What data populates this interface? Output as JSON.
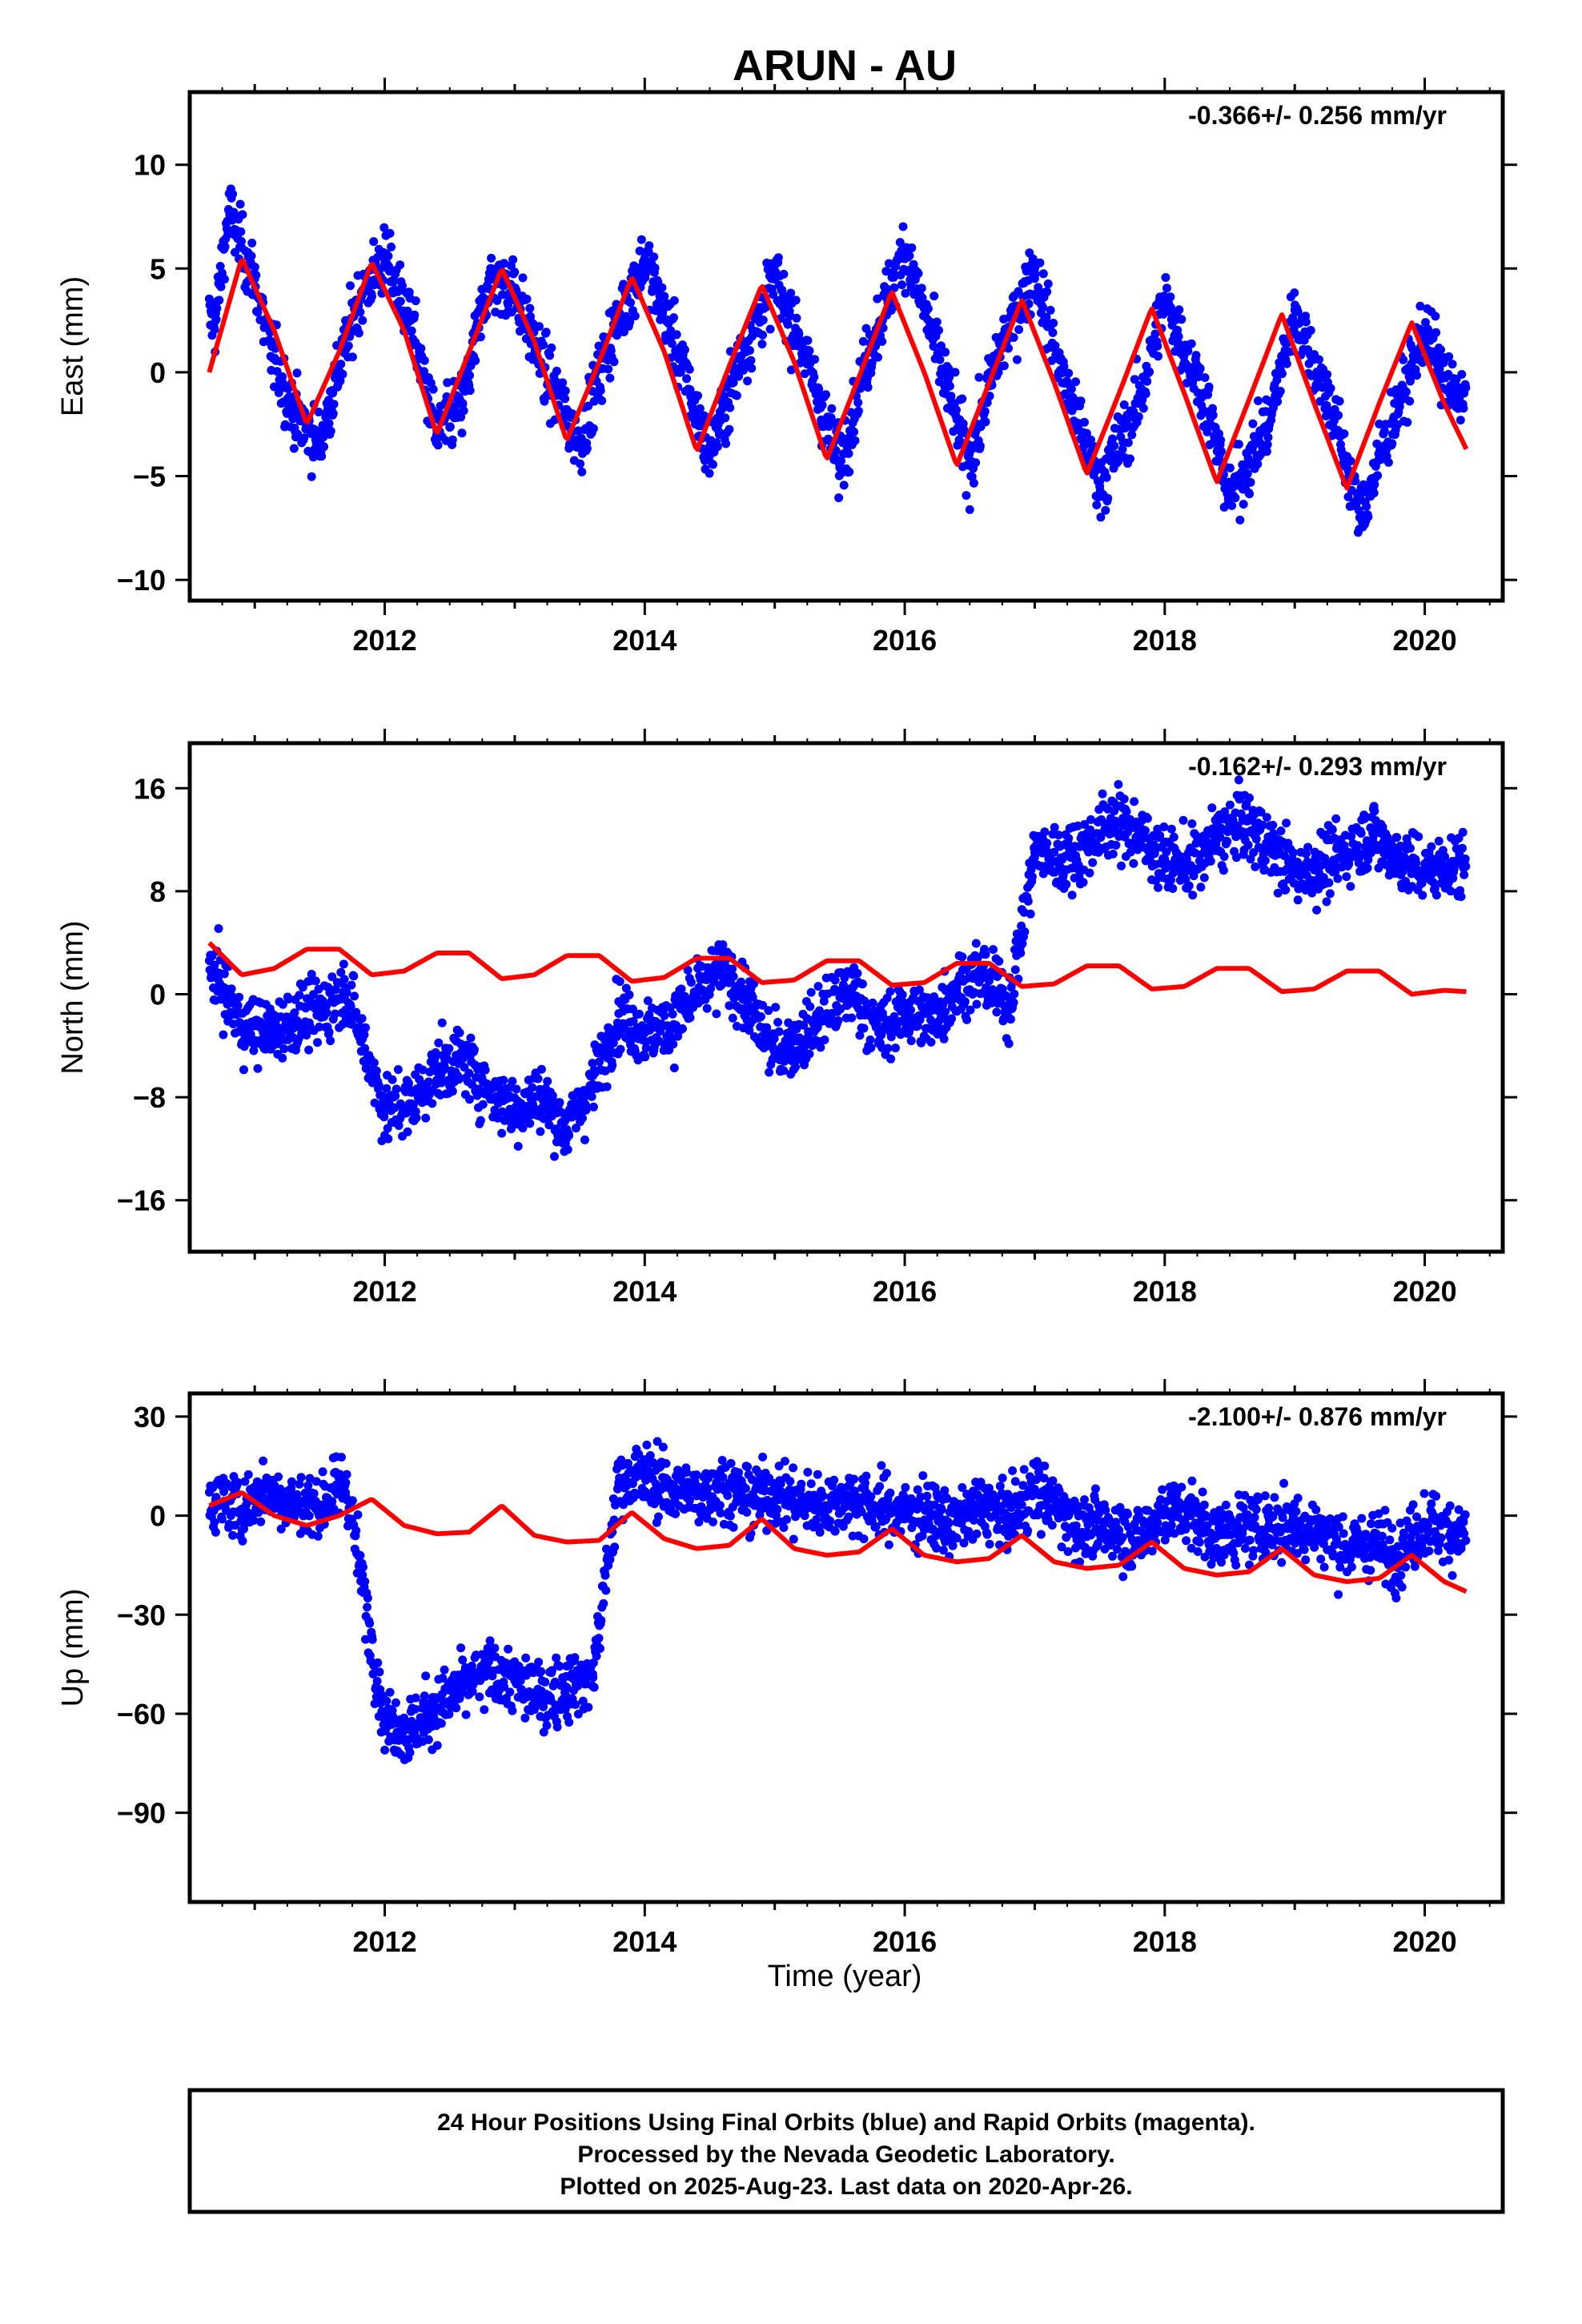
{
  "chart_data": {
    "type": "scatter",
    "title": "ARUN - AU",
    "xlabel": "Time (year)",
    "xlim": [
      2010.5,
      2020.6
    ],
    "xticks": [
      2012,
      2014,
      2016,
      2018,
      2020
    ],
    "colors": {
      "final_orbits": "#0000ff",
      "model": "#ff0000"
    },
    "panels": [
      {
        "ylabel": "East (mm)",
        "ylim": [
          -11,
          13.5
        ],
        "yticks": [
          10,
          5,
          0,
          -5,
          -10
        ],
        "rate": "-0.366+/- 0.256 mm/yr",
        "data_start": 2010.65,
        "data_end": 2020.32,
        "series": [
          {
            "name": "model",
            "style": "line",
            "x": [
              2010.65,
              2010.9,
              2011.15,
              2011.4,
              2011.65,
              2011.9,
              2012.15,
              2012.4,
              2012.65,
              2012.9,
              2013.15,
              2013.4,
              2013.65,
              2013.9,
              2014.15,
              2014.4,
              2014.65,
              2014.9,
              2015.15,
              2015.4,
              2015.65,
              2015.9,
              2016.15,
              2016.4,
              2016.65,
              2016.9,
              2017.15,
              2017.4,
              2017.65,
              2017.9,
              2018.15,
              2018.4,
              2018.65,
              2018.9,
              2019.15,
              2019.4,
              2019.65,
              2019.9,
              2020.15,
              2020.32
            ],
            "y": [
              0.0,
              5.5,
              2.0,
              -2.5,
              1.0,
              5.3,
              2.0,
              -3.0,
              1.0,
              5.0,
              1.5,
              -3.3,
              0.5,
              4.6,
              1.0,
              -3.8,
              0.3,
              4.2,
              0.5,
              -4.2,
              -0.2,
              3.9,
              0.0,
              -4.5,
              -0.5,
              3.5,
              -0.5,
              -4.9,
              -1.0,
              3.1,
              -1.0,
              -5.3,
              -1.3,
              2.8,
              -1.5,
              -5.6,
              -1.5,
              2.4,
              -1.5,
              -3.7
            ]
          },
          {
            "name": "final orbits",
            "style": "points",
            "x": [
              2010.7,
              2010.8,
              2010.9,
              2011.0,
              2011.1,
              2011.3,
              2011.5,
              2011.6,
              2011.8,
              2012.0,
              2012.2,
              2012.4,
              2012.6,
              2012.8,
              2013.0,
              2013.2,
              2013.5,
              2013.7,
              2014.0,
              2014.2,
              2014.5,
              2014.7,
              2015.0,
              2015.2,
              2015.5,
              2015.7,
              2016.0,
              2016.2,
              2016.5,
              2016.7,
              2017.0,
              2017.2,
              2017.5,
              2017.8,
              2018.0,
              2018.3,
              2018.5,
              2018.8,
              2019.0,
              2019.3,
              2019.5,
              2019.8,
              2020.0,
              2020.2
            ],
            "y": [
              2.5,
              7.8,
              6.0,
              4.5,
              1.5,
              -2.0,
              -3.5,
              -1.0,
              3.5,
              5.5,
              2.5,
              -3.0,
              -1.5,
              4.5,
              4.0,
              0.5,
              -3.5,
              1.0,
              5.5,
              2.0,
              -4.0,
              0.0,
              4.5,
              1.5,
              -4.5,
              0.5,
              6.0,
              2.0,
              -4.5,
              0.5,
              5.0,
              0.0,
              -5.5,
              -1.5,
              3.5,
              -1.0,
              -6.0,
              -2.5,
              3.0,
              -2.0,
              -7.0,
              -1.5,
              2.0,
              -1.0
            ]
          }
        ]
      },
      {
        "ylabel": "North (mm)",
        "ylim": [
          -20,
          19.5
        ],
        "yticks": [
          16,
          8,
          0,
          -8,
          -16
        ],
        "rate": "-0.162+/- 0.293 mm/yr",
        "data_start": 2010.65,
        "data_end": 2020.32,
        "series": [
          {
            "name": "model",
            "style": "line",
            "x": [
              2010.65,
              2010.9,
              2011.15,
              2011.4,
              2011.65,
              2011.9,
              2012.15,
              2012.4,
              2012.65,
              2012.9,
              2013.15,
              2013.4,
              2013.65,
              2013.9,
              2014.15,
              2014.4,
              2014.65,
              2014.9,
              2015.15,
              2015.4,
              2015.65,
              2015.9,
              2016.15,
              2016.4,
              2016.65,
              2016.9,
              2017.15,
              2017.4,
              2017.65,
              2017.9,
              2018.15,
              2018.4,
              2018.65,
              2018.9,
              2019.15,
              2019.4,
              2019.65,
              2019.9,
              2020.15,
              2020.32
            ],
            "y": [
              4.0,
              1.5,
              2.0,
              3.5,
              3.5,
              1.5,
              1.8,
              3.2,
              3.2,
              1.2,
              1.5,
              3.0,
              3.0,
              1.0,
              1.3,
              2.8,
              2.8,
              0.9,
              1.1,
              2.6,
              2.6,
              0.7,
              0.9,
              2.4,
              2.4,
              0.6,
              0.8,
              2.2,
              2.2,
              0.4,
              0.6,
              2.0,
              2.0,
              0.2,
              0.4,
              1.8,
              1.8,
              0.0,
              0.3,
              0.2
            ]
          },
          {
            "name": "final orbits",
            "style": "points",
            "x": [
              2010.7,
              2010.9,
              2011.1,
              2011.3,
              2011.5,
              2011.7,
              2012.0,
              2012.2,
              2012.4,
              2012.6,
              2012.8,
              2013.0,
              2013.2,
              2013.4,
              2013.6,
              2013.8,
              2014.0,
              2014.2,
              2014.4,
              2014.6,
              2014.8,
              2015.0,
              2015.2,
              2015.4,
              2015.6,
              2015.8,
              2016.0,
              2016.2,
              2016.4,
              2016.6,
              2016.8,
              2017.0,
              2017.2,
              2017.4,
              2017.6,
              2017.8,
              2018.0,
              2018.2,
              2018.4,
              2018.6,
              2018.8,
              2019.0,
              2019.2,
              2019.4,
              2019.6,
              2019.8,
              2020.0,
              2020.2
            ],
            "y": [
              1.5,
              -2.5,
              -3.0,
              -2.0,
              -1.5,
              0.5,
              -9.0,
              -8.5,
              -6.0,
              -5.0,
              -7.5,
              -9.0,
              -8.0,
              -10.5,
              -7.0,
              -1.5,
              -3.0,
              -2.5,
              0.0,
              2.0,
              -1.0,
              -4.5,
              -3.5,
              -1.5,
              0.5,
              -3.0,
              -1.5,
              -2.0,
              0.5,
              1.5,
              -1.0,
              11.0,
              10.5,
              11.5,
              13.5,
              12.5,
              10.5,
              10.0,
              12.0,
              13.5,
              11.5,
              9.5,
              10.0,
              11.0,
              12.5,
              10.5,
              9.5,
              10.0
            ]
          }
        ]
      },
      {
        "ylabel": "Up (mm)",
        "ylim": [
          -117,
          37
        ],
        "yticks": [
          30,
          0,
          -30,
          -60,
          -90
        ],
        "rate": "-2.100+/- 0.876 mm/yr",
        "data_start": 2010.65,
        "data_end": 2020.32,
        "series": [
          {
            "name": "model",
            "style": "line",
            "x": [
              2010.65,
              2010.9,
              2011.15,
              2011.4,
              2011.65,
              2011.9,
              2012.15,
              2012.4,
              2012.65,
              2012.9,
              2013.15,
              2013.4,
              2013.65,
              2013.9,
              2014.15,
              2014.4,
              2014.65,
              2014.9,
              2015.15,
              2015.4,
              2015.65,
              2015.9,
              2016.15,
              2016.4,
              2016.65,
              2016.9,
              2017.15,
              2017.4,
              2017.65,
              2017.9,
              2018.15,
              2018.4,
              2018.65,
              2018.9,
              2019.15,
              2019.4,
              2019.65,
              2019.9,
              2020.15,
              2020.32
            ],
            "y": [
              3.0,
              7.0,
              0.0,
              -3.0,
              0.0,
              5.0,
              -3.0,
              -5.5,
              -5.0,
              3.0,
              -6.0,
              -8.0,
              -7.5,
              1.0,
              -7.0,
              -10.0,
              -9.0,
              -1.0,
              -10.0,
              -12.0,
              -11.0,
              -4.0,
              -12.0,
              -14.0,
              -13.0,
              -6.0,
              -14.0,
              -16.0,
              -15.0,
              -8.0,
              -16.0,
              -18.0,
              -17.0,
              -10.0,
              -18.0,
              -20.0,
              -19.0,
              -12.0,
              -20.0,
              -23.0
            ]
          },
          {
            "name": "final orbits",
            "style": "points",
            "x": [
              2010.7,
              2010.9,
              2011.1,
              2011.3,
              2011.5,
              2011.7,
              2012.0,
              2012.2,
              2012.4,
              2012.6,
              2012.8,
              2013.0,
              2013.2,
              2013.4,
              2013.6,
              2013.8,
              2014.0,
              2014.2,
              2014.4,
              2014.6,
              2014.8,
              2015.0,
              2015.2,
              2015.4,
              2015.6,
              2015.8,
              2016.0,
              2016.2,
              2016.4,
              2016.6,
              2016.8,
              2017.0,
              2017.2,
              2017.4,
              2017.6,
              2017.8,
              2018.0,
              2018.2,
              2018.4,
              2018.6,
              2018.8,
              2019.0,
              2019.2,
              2019.4,
              2019.6,
              2019.8,
              2020.0,
              2020.2
            ],
            "y": [
              5.0,
              2.0,
              8.0,
              4.0,
              3.0,
              10.0,
              -62.0,
              -65.0,
              -58.0,
              -52.0,
              -48.0,
              -50.0,
              -55.0,
              -52.0,
              -48.0,
              10.0,
              12.0,
              8.0,
              6.0,
              9.0,
              5.0,
              7.0,
              4.0,
              3.0,
              5.0,
              2.0,
              1.0,
              0.0,
              -2.0,
              3.0,
              -1.0,
              8.0,
              2.0,
              -5.0,
              -3.0,
              -8.0,
              2.0,
              0.0,
              -6.0,
              -4.0,
              -3.0,
              -3.0,
              -5.0,
              -10.0,
              -8.0,
              -12.0,
              -2.0,
              -5.0
            ]
          }
        ]
      }
    ]
  },
  "footer": {
    "line1": "24 Hour Positions Using Final Orbits (blue) and Rapid Orbits (magenta).",
    "line2": "Processed by the Nevada Geodetic Laboratory.",
    "line3": "Plotted on 2025-Aug-23. Last data on 2020-Apr-26."
  }
}
